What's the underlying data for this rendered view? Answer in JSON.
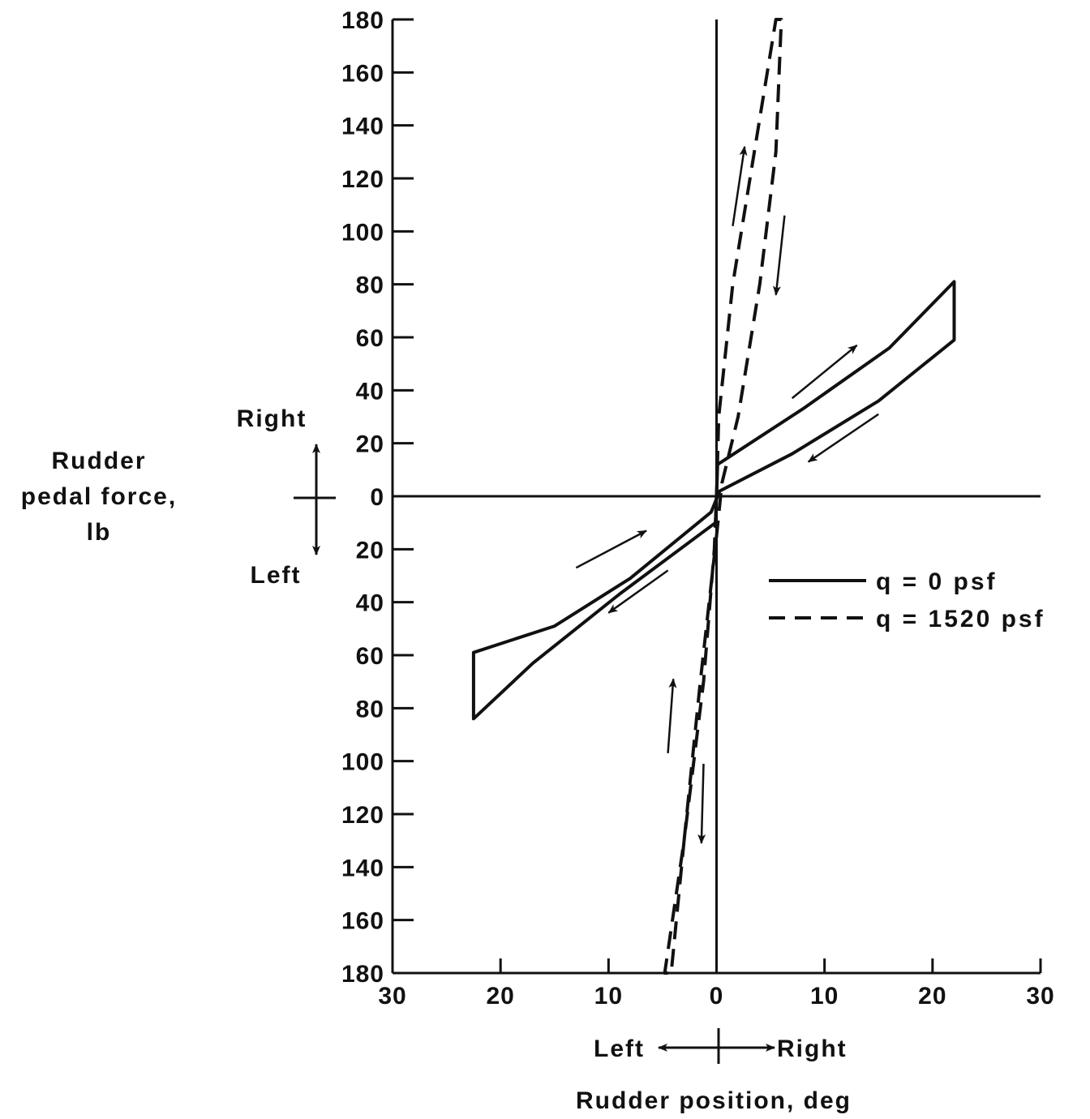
{
  "chart_data": {
    "type": "line",
    "ylabel": [
      "Rudder",
      "pedal force,",
      "lb"
    ],
    "xlabel": "Rudder position, deg",
    "x_direction": {
      "left": "Left",
      "right": "Right"
    },
    "y_direction": {
      "up": "Right",
      "down": "Left"
    },
    "xlim": [
      -30,
      30
    ],
    "ylim": [
      -180,
      180
    ],
    "x_ticks": [
      -30,
      -20,
      -10,
      0,
      10,
      20,
      30
    ],
    "x_tick_labels": [
      "30",
      "20",
      "10",
      "0",
      "10",
      "20",
      "30"
    ],
    "y_ticks": [
      180,
      160,
      140,
      120,
      100,
      80,
      60,
      40,
      20,
      0,
      -20,
      -40,
      -60,
      -80,
      -100,
      -120,
      -140,
      -160,
      -180
    ],
    "y_tick_labels": [
      "180",
      "160",
      "140",
      "120",
      "100",
      "80",
      "60",
      "40",
      "20",
      "0",
      "20",
      "40",
      "60",
      "80",
      "100",
      "120",
      "140",
      "160",
      "180"
    ],
    "legend_position": "right-center",
    "series": [
      {
        "name": "q = 0 psf",
        "style": "solid",
        "loop": [
          {
            "x": 0,
            "y": 0
          },
          {
            "x": 0.1,
            "y": 12
          },
          {
            "x": 8,
            "y": 33
          },
          {
            "x": 16,
            "y": 56
          },
          {
            "x": 22,
            "y": 81
          },
          {
            "x": 22,
            "y": 59
          },
          {
            "x": 15,
            "y": 36
          },
          {
            "x": 7,
            "y": 16
          },
          {
            "x": 0.3,
            "y": 2
          },
          {
            "x": -0.5,
            "y": -6
          },
          {
            "x": -8,
            "y": -31
          },
          {
            "x": -15,
            "y": -49
          },
          {
            "x": -22.5,
            "y": -59
          },
          {
            "x": -22.5,
            "y": -84
          },
          {
            "x": -17,
            "y": -63
          },
          {
            "x": -9,
            "y": -37
          },
          {
            "x": -0.1,
            "y": -10
          },
          {
            "x": 0,
            "y": 0
          }
        ]
      },
      {
        "name": "q = 1520 psf",
        "style": "dashed",
        "loop": [
          {
            "x": 0,
            "y": 0
          },
          {
            "x": 0.2,
            "y": 30
          },
          {
            "x": 1.5,
            "y": 80
          },
          {
            "x": 3.5,
            "y": 130
          },
          {
            "x": 5.5,
            "y": 180
          },
          {
            "x": 6,
            "y": 180
          },
          {
            "x": 5.5,
            "y": 130
          },
          {
            "x": 4,
            "y": 80
          },
          {
            "x": 2,
            "y": 30
          },
          {
            "x": 0.5,
            "y": 5
          },
          {
            "x": 0,
            "y": -15
          },
          {
            "x": -1.5,
            "y": -70
          },
          {
            "x": -3,
            "y": -130
          },
          {
            "x": -4.8,
            "y": -180
          },
          {
            "x": -4.2,
            "y": -180
          },
          {
            "x": -3,
            "y": -130
          },
          {
            "x": -1.2,
            "y": -70
          },
          {
            "x": -0.2,
            "y": -20
          },
          {
            "x": 0,
            "y": 0
          }
        ]
      }
    ],
    "annotations": [
      {
        "type": "arrow",
        "from": {
          "x": 7,
          "y": 37
        },
        "to": {
          "x": 13,
          "y": 57
        }
      },
      {
        "type": "arrow",
        "from": {
          "x": 15,
          "y": 31
        },
        "to": {
          "x": 8.5,
          "y": 13
        }
      },
      {
        "type": "arrow",
        "from": {
          "x": -13,
          "y": -27
        },
        "to": {
          "x": -6.5,
          "y": -13
        }
      },
      {
        "type": "arrow",
        "from": {
          "x": -4.5,
          "y": -28
        },
        "to": {
          "x": -10,
          "y": -44
        }
      },
      {
        "type": "arrow",
        "from": {
          "x": 1.5,
          "y": 102
        },
        "to": {
          "x": 2.6,
          "y": 132
        }
      },
      {
        "type": "arrow",
        "from": {
          "x": 6.3,
          "y": 106
        },
        "to": {
          "x": 5.5,
          "y": 76
        }
      },
      {
        "type": "arrow",
        "from": {
          "x": -4.5,
          "y": -97
        },
        "to": {
          "x": -4,
          "y": -69
        }
      },
      {
        "type": "arrow",
        "from": {
          "x": -1.2,
          "y": -101
        },
        "to": {
          "x": -1.4,
          "y": -131
        }
      }
    ]
  }
}
